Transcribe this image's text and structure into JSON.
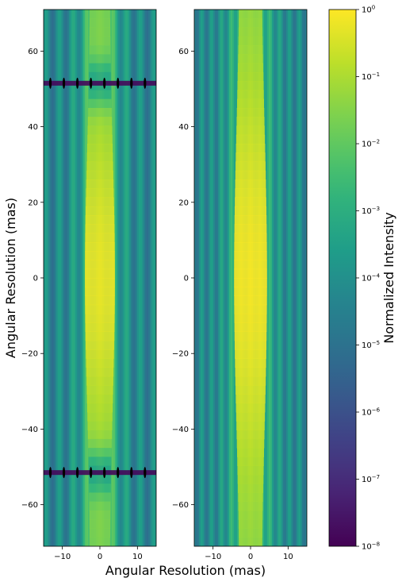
{
  "chart_data": [
    {
      "type": "heatmap",
      "panel": "left",
      "xlabel": "Angular Resolution (mas)",
      "ylabel": "Angular Resolution (mas)",
      "xlim": [
        -15,
        15
      ],
      "ylim": [
        -71,
        71
      ],
      "xticks": [
        -10,
        0,
        10
      ],
      "yticks": [
        -60,
        -40,
        -20,
        0,
        20,
        40,
        60
      ],
      "xtick_labels": [
        "−10",
        "0",
        "10"
      ],
      "ytick_labels": [
        "−60",
        "−40",
        "−20",
        "0",
        "20",
        "40",
        "60"
      ],
      "fringe_period_x": 3.6,
      "dark_rows_y": [
        51.5,
        -51.5
      ],
      "peak_intensity": 1
    },
    {
      "type": "heatmap",
      "panel": "right",
      "xlabel": "",
      "ylabel": "",
      "xlim": [
        -15,
        15
      ],
      "ylim": [
        -71,
        71
      ],
      "xticks": [
        -10,
        0,
        10
      ],
      "yticks": [
        -60,
        -40,
        -20,
        0,
        20,
        40,
        60
      ],
      "xtick_labels": [
        "−10",
        "0",
        "10"
      ],
      "ytick_labels": [
        "−60",
        "−40",
        "−20",
        "0",
        "20",
        "40",
        "60"
      ],
      "fringe_period_x": 2.6,
      "peak_intensity": 1
    }
  ],
  "colorbar": {
    "label": "Normalized Intensity",
    "scale": "log",
    "colormap": "viridis",
    "range": [
      1e-08,
      1
    ],
    "ticks": [
      {
        "base": "10",
        "exp": "0",
        "value": 1
      },
      {
        "base": "10",
        "exp": "−1",
        "value": 0.1
      },
      {
        "base": "10",
        "exp": "−2",
        "value": 0.01
      },
      {
        "base": "10",
        "exp": "−3",
        "value": 0.001
      },
      {
        "base": "10",
        "exp": "−4",
        "value": 0.0001
      },
      {
        "base": "10",
        "exp": "−5",
        "value": 1e-05
      },
      {
        "base": "10",
        "exp": "−6",
        "value": 1e-06
      },
      {
        "base": "10",
        "exp": "−7",
        "value": 1e-07
      },
      {
        "base": "10",
        "exp": "−8",
        "value": 1e-08
      }
    ]
  },
  "colors": {
    "viridis": [
      "#440154",
      "#482878",
      "#3e4989",
      "#31688e",
      "#26828e",
      "#1f9e89",
      "#35b779",
      "#6ece58",
      "#b5de2b",
      "#fde725"
    ]
  }
}
